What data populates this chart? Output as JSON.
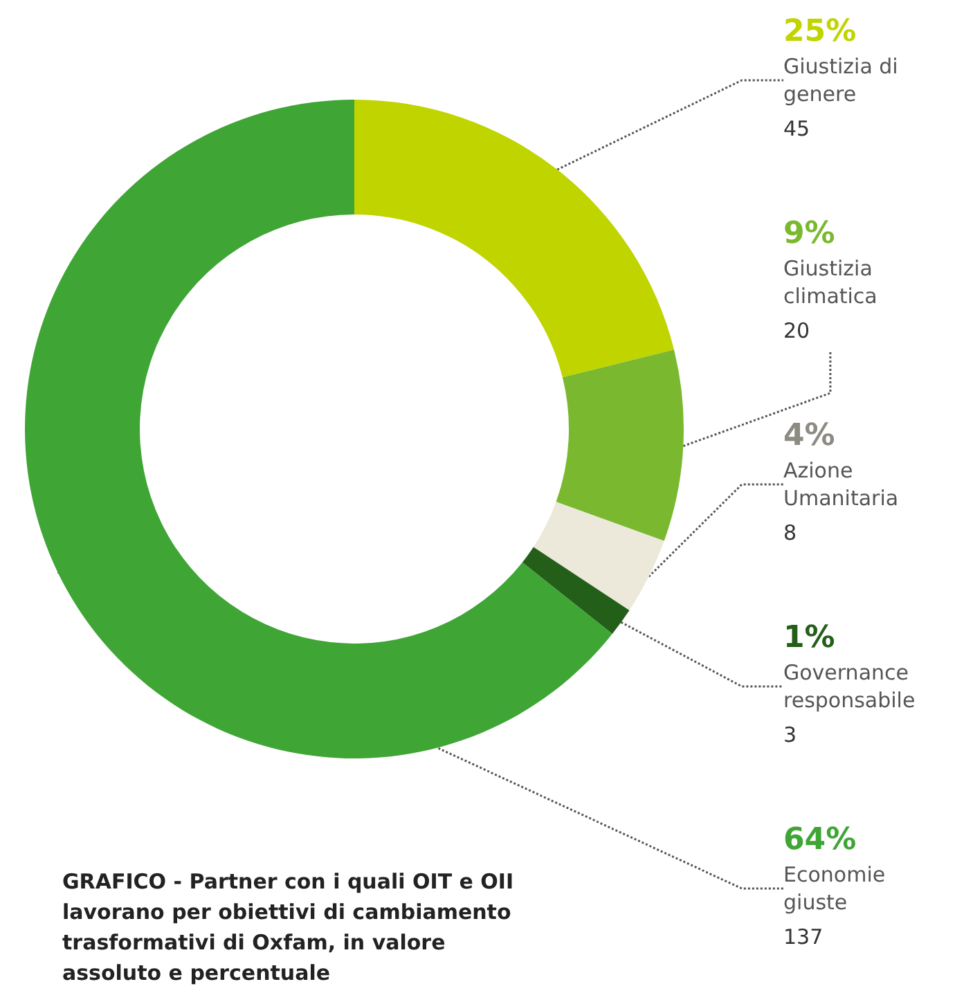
{
  "chart_data": {
    "type": "donut",
    "title": "GRAFICO  -  Partner con i quali OIT e OII lavorano per obiettivi di cambiamento trasformativi di Oxfam, in valore assoluto e percentuale",
    "categories": [
      "Giustizia di genere",
      "Giustizia climatica",
      "Azione Umanitaria",
      "Governance responsabile",
      "Economie giuste"
    ],
    "values": [
      45,
      20,
      8,
      3,
      137
    ],
    "annotations": [
      "25%",
      "9%",
      "4%",
      "1%",
      "64%"
    ],
    "data_labels": true,
    "colors": [
      "#c0d400",
      "#7ab92f",
      "#ece8da",
      "#245f1a",
      "#3fa535"
    ],
    "legend": false
  }
}
